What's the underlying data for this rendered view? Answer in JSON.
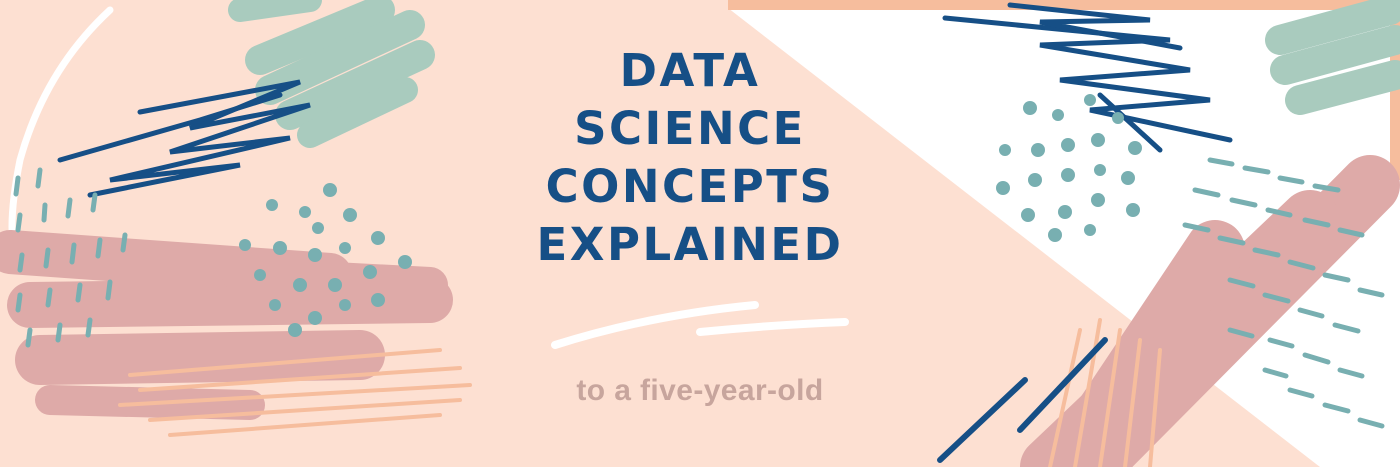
{
  "banner": {
    "title_lines": [
      "DATA",
      "SCIENCE",
      "CONCEPTS",
      "EXPLAINED"
    ],
    "subtitle": "to a five-year-old"
  },
  "palette": {
    "background": "#fde0d2",
    "white_panel": "#ffffff",
    "navy": "#164f86",
    "teal": "#78afb1",
    "sage": "#a9cbbe",
    "rose": "#deaaa8",
    "peach": "#f6bd9d",
    "subtitle_text": "#c7a59d"
  }
}
